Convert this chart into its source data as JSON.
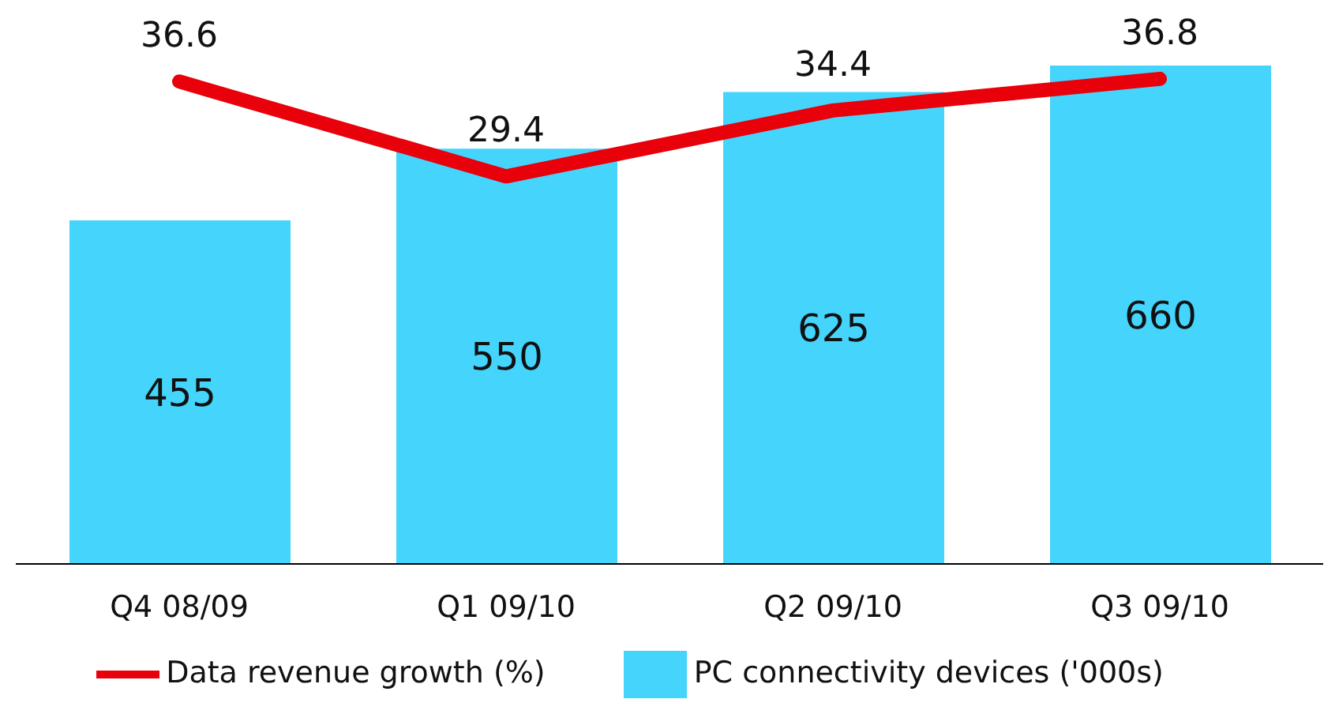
{
  "chart_data": {
    "type": "bar",
    "categories": [
      "Q4 08/09",
      "Q1 09/10",
      "Q2 09/10",
      "Q3 09/10"
    ],
    "series": [
      {
        "name": "PC connectivity devices ('000s)",
        "color": "#44d4fc",
        "values": [
          455,
          550,
          625,
          660
        ]
      },
      {
        "name": "Data revenue growth (%)",
        "type": "line",
        "axis": "y2",
        "color": "#e8000b",
        "values": [
          36.6,
          29.4,
          34.4,
          36.8
        ]
      }
    ],
    "data_labels": true,
    "legend": "bottom",
    "grid": false,
    "marker": "none",
    "line_style": "solid"
  }
}
